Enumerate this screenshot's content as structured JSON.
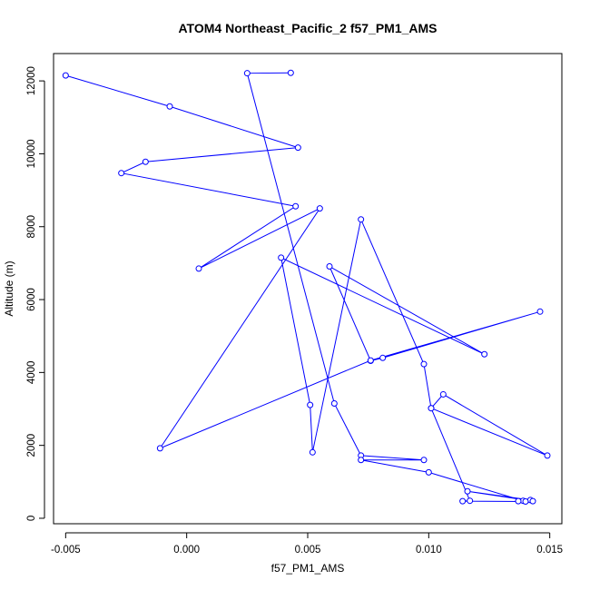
{
  "chart_data": {
    "type": "line",
    "title": "ATOM4 Northeast_Pacific_2 f57_PM1_AMS",
    "xlabel": "f57_PM1_AMS",
    "ylabel": "Altitude (m)",
    "xlim": [
      -0.0055,
      0.0155
    ],
    "ylim": [
      -150,
      12750
    ],
    "xticks": [
      -0.005,
      0.0,
      0.005,
      0.01,
      0.015
    ],
    "xtick_labels": [
      "-0.005",
      "0.000",
      "0.005",
      "0.010",
      "0.015"
    ],
    "yticks": [
      0,
      2000,
      4000,
      6000,
      8000,
      10000,
      12000
    ],
    "ytick_labels": [
      "0",
      "2000",
      "4000",
      "6000",
      "8000",
      "10000",
      "12000"
    ],
    "grid": false,
    "marker": "open-circle",
    "color": "#0000ff",
    "series": [
      {
        "x": [
          0.0043,
          0.0025,
          0.0061,
          0.0072,
          0.0098,
          0.0072,
          0.01,
          0.0139,
          0.0142,
          0.0116,
          0.0143,
          0.0137,
          0.014,
          0.0114,
          0.0117,
          0.0101,
          0.0149,
          0.0106,
          0.0101,
          0.0098,
          0.0072,
          0.0052,
          0.0051,
          0.0039,
          0.0123,
          0.0059,
          0.0076,
          0.0081,
          0.0146,
          0.0076,
          -0.0011,
          0.0055,
          0.0005,
          0.0045,
          -0.0027,
          -0.0017,
          0.0046,
          -0.0007,
          -0.005
        ],
        "y": [
          12220,
          12210,
          3150,
          1720,
          1600,
          1600,
          1260,
          480,
          500,
          740,
          470,
          470,
          460,
          470,
          480,
          3020,
          1720,
          3400,
          3020,
          4230,
          8200,
          1810,
          3110,
          7150,
          4500,
          6910,
          4320,
          4400,
          5670,
          4330,
          1920,
          8500,
          6850,
          8560,
          9470,
          9780,
          10170,
          11300,
          12150
        ]
      }
    ]
  }
}
